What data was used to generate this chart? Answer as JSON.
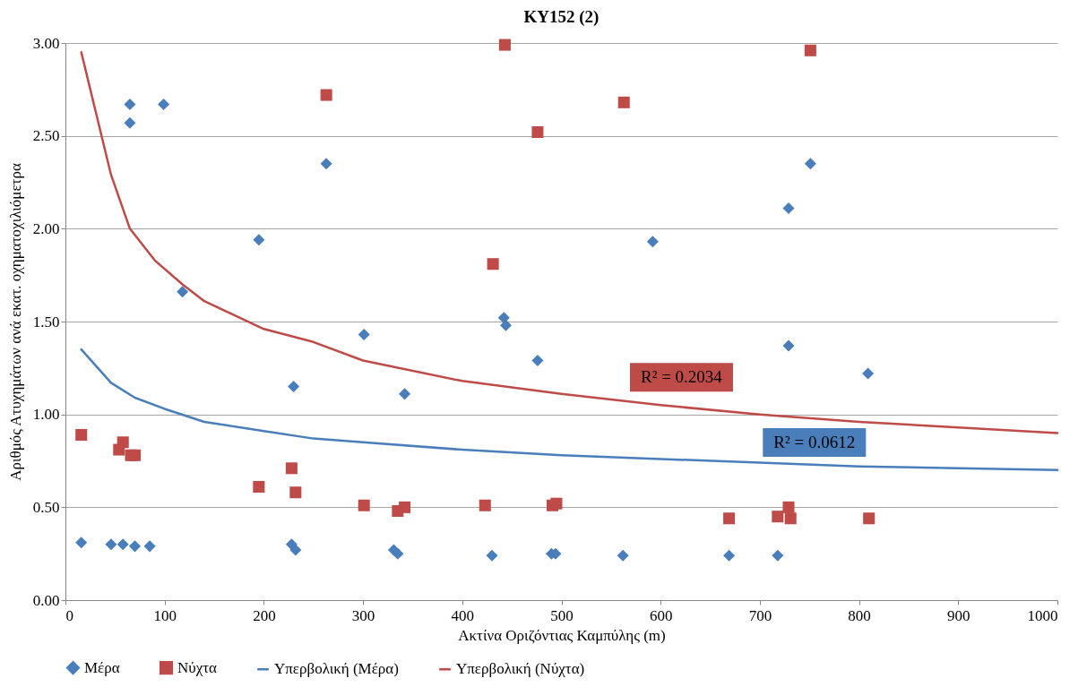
{
  "chart_data": {
    "type": "scatter",
    "title": "ΚΥ152 (2)",
    "xlabel": "Ακτίνα Οριζόντιας Καμπύλης (m)",
    "ylabel": "Αριθμός Ατυχημάτων ανά εκατ. οχηματοχιλιόμετρα",
    "xlim": [
      0,
      1000
    ],
    "xticks": [
      0,
      100,
      200,
      300,
      400,
      500,
      600,
      700,
      800,
      900,
      1000
    ],
    "ylim": [
      0,
      3
    ],
    "yticks": [
      {
        "value": 0,
        "label": "0.00"
      },
      {
        "value": 0.5,
        "label": "0.50"
      },
      {
        "value": 1,
        "label": "1.00"
      },
      {
        "value": 1.5,
        "label": "1.50"
      },
      {
        "value": 2,
        "label": "2.00"
      },
      {
        "value": 2.5,
        "label": "2.50"
      },
      {
        "value": 3,
        "label": "3.00"
      }
    ],
    "grid": "y",
    "legend": "bottom",
    "series": [
      {
        "name": "Μέρα",
        "marker": "diamond",
        "color": "#4a7ebb",
        "x": [
          16,
          46,
          58,
          70,
          85,
          65,
          65,
          99,
          118,
          195,
          228,
          232,
          230,
          263,
          301,
          331,
          335,
          342,
          430,
          442,
          444,
          476,
          490,
          494,
          562,
          592,
          669,
          718,
          729,
          729,
          751,
          809
        ],
        "values": [
          0.31,
          0.3,
          0.3,
          0.29,
          0.29,
          2.67,
          2.57,
          2.67,
          1.66,
          1.94,
          0.3,
          0.27,
          1.15,
          2.35,
          1.43,
          0.27,
          0.25,
          1.11,
          0.24,
          1.52,
          1.48,
          1.29,
          0.25,
          0.25,
          0.24,
          1.93,
          0.24,
          0.24,
          2.11,
          1.37,
          2.35,
          1.22
        ]
      },
      {
        "name": "Νύχτα",
        "marker": "square",
        "color": "#be4b48",
        "x": [
          16,
          54,
          58,
          66,
          70,
          263,
          195,
          228,
          232,
          301,
          335,
          342,
          423,
          431,
          443,
          476,
          491,
          495,
          563,
          669,
          718,
          729,
          731,
          751,
          810
        ],
        "values": [
          0.89,
          0.81,
          0.85,
          0.78,
          0.78,
          2.72,
          0.61,
          0.71,
          0.58,
          0.51,
          0.48,
          0.5,
          0.51,
          1.81,
          2.99,
          2.52,
          0.51,
          0.52,
          2.68,
          0.44,
          0.45,
          0.5,
          0.44,
          2.96,
          0.44
        ]
      },
      {
        "name": "Υπερβολική (Μέρα)",
        "type": "line",
        "color": "#4a7ebb",
        "x": [
          16,
          46,
          70,
          100,
          140,
          200,
          250,
          300,
          400,
          500,
          600,
          700,
          800,
          900,
          1000
        ],
        "values": [
          1.35,
          1.17,
          1.09,
          1.03,
          0.96,
          0.91,
          0.87,
          0.85,
          0.81,
          0.78,
          0.76,
          0.74,
          0.72,
          0.71,
          0.7
        ]
      },
      {
        "name": "Υπερβολική (Νύχτα)",
        "type": "line",
        "color": "#be4b48",
        "x": [
          16,
          46,
          65,
          90,
          118,
          140,
          200,
          250,
          300,
          400,
          500,
          600,
          700,
          800,
          900,
          1000
        ],
        "values": [
          2.95,
          2.29,
          2.0,
          1.83,
          1.7,
          1.61,
          1.46,
          1.39,
          1.29,
          1.18,
          1.11,
          1.05,
          1.0,
          0.96,
          0.93,
          0.9
        ]
      }
    ],
    "annotations": [
      "R² = 0.2034",
      "R² = 0.0612"
    ]
  }
}
